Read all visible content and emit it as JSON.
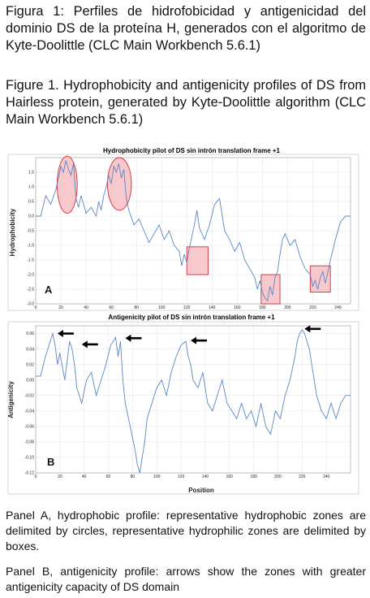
{
  "captions": {
    "spanish": "Figura 1: Perfiles de hidrofobicidad y antigenicidad del dominio DS de la proteína H, generados con el algoritmo de Kyte-Doolittle (CLC Main Workbench 5.6.1)",
    "english": "Figure 1. Hydrophobicity and antigenicity profiles of DS from Hairless protein, generated by Kyte-Doolittle algorithm (CLC Main Workbench 5.6.1)"
  },
  "notes": {
    "panel_a": "Panel A, hydrophobic profile: representative hydrophobic zones are delimited by circles, representative hydrophilic zones are delimited by boxes.",
    "panel_b": "Panel B, antigenicity profile: arrows show the zones with greater antigenicity capacity of DS domain"
  },
  "colors": {
    "line": "#5b86c4",
    "highlight_fill": "#f4b5bb",
    "highlight_stroke": "#d0303a",
    "arrow": "#000000"
  },
  "chart_data": [
    {
      "type": "line",
      "title": "Hydrophobicity pilot of DS sin intrón translation frame +1",
      "panel_label": "A",
      "xlabel": "",
      "ylabel": "Hydrophobicity",
      "xlim": [
        0,
        250
      ],
      "ylim": [
        -3.0,
        2.0
      ],
      "xticks": [
        "0",
        "20",
        "40",
        "60",
        "80",
        "100",
        "120",
        "140",
        "160",
        "180",
        "200",
        "220",
        "240"
      ],
      "yticks": [
        "1.5",
        "1.0",
        "0.5",
        "0.0",
        "-0.5",
        "-1.0",
        "-1.5",
        "-2.0",
        "-2.5",
        "-3.0"
      ],
      "grid": true,
      "series": [
        {
          "x": [
            0,
            4,
            8,
            12,
            16,
            18,
            20,
            22,
            24,
            26,
            28,
            30,
            32,
            34,
            36,
            40,
            44,
            48,
            50,
            52,
            54,
            56,
            58,
            60,
            62,
            64,
            66,
            68,
            70,
            72,
            74,
            78,
            82,
            86,
            90,
            94,
            98,
            102,
            106,
            110,
            114,
            116,
            118,
            120,
            122,
            124,
            126,
            128,
            130,
            134,
            138,
            142,
            146,
            150,
            154,
            158,
            162,
            166,
            170,
            174,
            176,
            178,
            180,
            182,
            184,
            186,
            188,
            190,
            192,
            194,
            196,
            198,
            202,
            206,
            210,
            214,
            218,
            220,
            222,
            224,
            226,
            228,
            230,
            234,
            238,
            242,
            246,
            250
          ],
          "y": [
            0.0,
            0.0,
            0.7,
            0.4,
            0.9,
            1.3,
            1.7,
            1.5,
            1.9,
            1.6,
            1.4,
            1.8,
            0.6,
            0.3,
            0.7,
            0.1,
            0.3,
            0.0,
            0.5,
            0.2,
            0.7,
            1.0,
            1.4,
            1.1,
            1.7,
            1.5,
            1.8,
            1.3,
            1.6,
            0.6,
            0.2,
            -0.3,
            -0.1,
            -0.5,
            -0.9,
            -0.6,
            -0.3,
            -0.8,
            -0.5,
            -1.0,
            -1.2,
            -1.7,
            -1.3,
            -1.6,
            -1.1,
            -0.7,
            -0.3,
            0.2,
            -0.4,
            -0.8,
            -0.3,
            0.4,
            0.6,
            -0.5,
            -0.8,
            -1.2,
            -0.9,
            -1.5,
            -1.8,
            -2.1,
            -2.5,
            -2.2,
            -2.6,
            -2.8,
            -2.9,
            -2.4,
            -2.7,
            -2.1,
            -1.9,
            -1.3,
            -0.8,
            -0.6,
            -1.0,
            -0.8,
            -1.4,
            -1.8,
            -2.0,
            -2.4,
            -2.2,
            -2.5,
            -2.1,
            -1.9,
            -2.3,
            -1.5,
            -0.8,
            -0.2,
            0.0,
            0.0
          ]
        }
      ],
      "highlights": [
        {
          "shape": "circle",
          "x": [
            17,
            33
          ],
          "y": [
            0.1,
            2.05
          ]
        },
        {
          "shape": "circle",
          "x": [
            57,
            76
          ],
          "y": [
            0.2,
            2.0
          ]
        },
        {
          "shape": "box",
          "x": [
            120,
            137
          ],
          "y": [
            -2.0,
            -1.05
          ]
        },
        {
          "shape": "box",
          "x": [
            179,
            194
          ],
          "y": [
            -3.0,
            -2.0
          ]
        },
        {
          "shape": "box",
          "x": [
            218,
            234
          ],
          "y": [
            -2.6,
            -1.7
          ]
        }
      ]
    },
    {
      "type": "line",
      "title": "Antigenicity pilot of DS sin intrón translation frame +1",
      "panel_label": "B",
      "xlabel": "Position",
      "ylabel": "Antigenicity",
      "xlim": [
        0,
        260
      ],
      "ylim": [
        -0.12,
        0.07
      ],
      "xticks": [
        "0",
        "20",
        "40",
        "60",
        "80",
        "100",
        "120",
        "140",
        "160",
        "180",
        "200",
        "220",
        "240"
      ],
      "yticks": [
        "0.06",
        "0.04",
        "0.02",
        "0.00",
        "-0.02",
        "-0.04",
        "-0.06",
        "-0.08",
        "-0.10",
        "-0.12"
      ],
      "grid": true,
      "series": [
        {
          "x": [
            0,
            4,
            8,
            12,
            14,
            16,
            18,
            20,
            24,
            28,
            30,
            32,
            34,
            38,
            42,
            46,
            50,
            54,
            58,
            62,
            66,
            68,
            70,
            72,
            74,
            78,
            82,
            84,
            86,
            88,
            90,
            92,
            96,
            100,
            104,
            108,
            112,
            116,
            120,
            124,
            126,
            128,
            130,
            134,
            138,
            142,
            146,
            150,
            154,
            158,
            162,
            166,
            170,
            174,
            178,
            182,
            186,
            190,
            194,
            198,
            202,
            206,
            210,
            214,
            216,
            218,
            220,
            222,
            224,
            226,
            228,
            230,
            232,
            236,
            240,
            244,
            248,
            252,
            256,
            260
          ],
          "y": [
            0.005,
            0.005,
            0.03,
            0.05,
            0.06,
            0.045,
            0.02,
            0.035,
            0.0,
            0.05,
            0.04,
            0.02,
            -0.01,
            -0.03,
            0.0,
            0.01,
            -0.02,
            0.0,
            0.02,
            0.045,
            0.055,
            0.03,
            0.05,
            0.0,
            -0.03,
            -0.06,
            -0.09,
            -0.11,
            -0.12,
            -0.1,
            -0.08,
            -0.05,
            -0.03,
            -0.01,
            0.0,
            -0.02,
            0.01,
            0.03,
            0.045,
            0.05,
            0.03,
            0.02,
            0.0,
            -0.01,
            0.01,
            -0.03,
            -0.04,
            -0.02,
            0.0,
            -0.03,
            -0.04,
            -0.05,
            -0.03,
            -0.05,
            -0.04,
            -0.06,
            -0.03,
            -0.06,
            -0.07,
            -0.04,
            -0.05,
            -0.02,
            0.0,
            0.03,
            0.05,
            0.06,
            0.065,
            0.06,
            0.05,
            0.04,
            0.02,
            0.0,
            -0.02,
            -0.04,
            -0.05,
            -0.03,
            -0.05,
            -0.03,
            -0.02,
            -0.02
          ]
        }
      ],
      "arrows": [
        {
          "x": 14,
          "y": 0.06
        },
        {
          "x": 34,
          "y": 0.046
        },
        {
          "x": 70,
          "y": 0.054
        },
        {
          "x": 124,
          "y": 0.051
        },
        {
          "x": 218,
          "y": 0.066
        }
      ]
    }
  ]
}
